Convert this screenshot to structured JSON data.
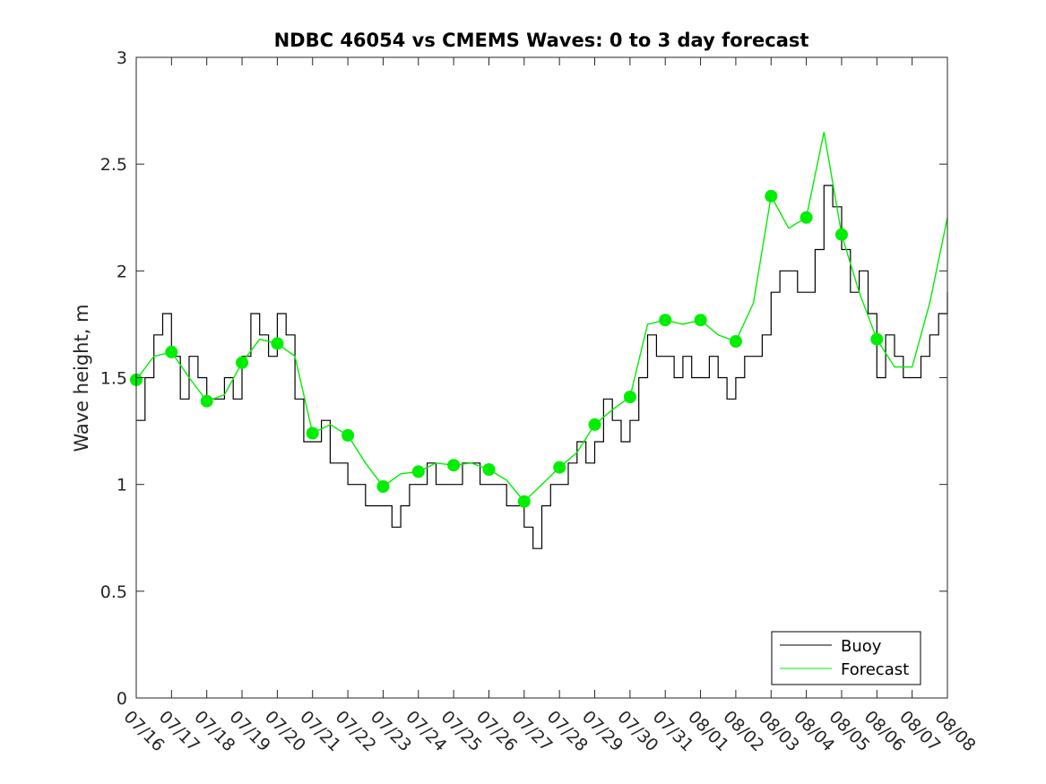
{
  "chart_data": {
    "type": "line",
    "title": "NDBC 46054 vs CMEMS Waves: 0 to 3 day forecast",
    "xlabel": "",
    "ylabel": "Wave height, m",
    "ylim": [
      0,
      3
    ],
    "yticks": [
      "0",
      "0.5",
      "1",
      "1.5",
      "2",
      "2.5",
      "3"
    ],
    "categories": [
      "07/16",
      "07/17",
      "07/18",
      "07/19",
      "07/20",
      "07/21",
      "07/22",
      "07/23",
      "07/24",
      "07/25",
      "07/26",
      "07/27",
      "07/28",
      "07/29",
      "07/30",
      "07/31",
      "08/01",
      "08/02",
      "08/03",
      "08/04",
      "08/05",
      "08/06",
      "08/07",
      "08/08"
    ],
    "grid": false,
    "legend_position": "bottom-right",
    "colors": {
      "buoy": "#000000",
      "forecast": "#00ee00"
    },
    "series": [
      {
        "name": "Buoy",
        "x": [
          "07/16",
          "07/16 06h",
          "07/16 12h",
          "07/16 18h",
          "07/17",
          "07/17 06h",
          "07/17 12h",
          "07/17 18h",
          "07/18",
          "07/18 06h",
          "07/18 12h",
          "07/18 18h",
          "07/19",
          "07/19 06h",
          "07/19 12h",
          "07/19 18h",
          "07/20",
          "07/20 06h",
          "07/20 12h",
          "07/20 18h",
          "07/21",
          "07/21 06h",
          "07/21 12h",
          "07/21 18h",
          "07/22",
          "07/22 06h",
          "07/22 12h",
          "07/22 18h",
          "07/23",
          "07/23 06h",
          "07/23 12h",
          "07/23 18h",
          "07/24",
          "07/24 06h",
          "07/24 12h",
          "07/24 18h",
          "07/25",
          "07/25 06h",
          "07/25 12h",
          "07/25 18h",
          "07/26",
          "07/26 06h",
          "07/26 12h",
          "07/26 18h",
          "07/27",
          "07/27 06h",
          "07/27 12h",
          "07/27 18h",
          "07/28",
          "07/28 06h",
          "07/28 12h",
          "07/28 18h",
          "07/29",
          "07/29 06h",
          "07/29 12h",
          "07/29 18h",
          "07/30",
          "07/30 06h",
          "07/30 12h",
          "07/30 18h",
          "07/31",
          "07/31 06h",
          "07/31 12h",
          "07/31 18h",
          "08/01",
          "08/01 06h",
          "08/01 12h",
          "08/01 18h",
          "08/02",
          "08/02 06h",
          "08/02 12h",
          "08/02 18h",
          "08/03",
          "08/03 06h",
          "08/03 12h",
          "08/03 18h",
          "08/04",
          "08/04 06h",
          "08/04 12h",
          "08/04 18h",
          "08/05",
          "08/05 06h",
          "08/05 12h",
          "08/05 18h",
          "08/06",
          "08/06 06h",
          "08/06 12h",
          "08/06 18h",
          "08/07",
          "08/07 06h",
          "08/07 12h",
          "08/07 18h",
          "08/08"
        ],
        "values": [
          1.3,
          1.5,
          1.7,
          1.8,
          1.6,
          1.4,
          1.6,
          1.5,
          1.4,
          1.4,
          1.5,
          1.4,
          1.6,
          1.8,
          1.7,
          1.6,
          1.8,
          1.7,
          1.4,
          1.2,
          1.2,
          1.3,
          1.1,
          1.1,
          1.0,
          1.0,
          0.9,
          0.9,
          0.9,
          0.8,
          0.9,
          1.0,
          1.0,
          1.1,
          1.0,
          1.0,
          1.0,
          1.1,
          1.1,
          1.0,
          1.0,
          1.0,
          0.9,
          0.9,
          0.8,
          0.7,
          0.9,
          1.0,
          1.0,
          1.1,
          1.2,
          1.1,
          1.2,
          1.4,
          1.3,
          1.2,
          1.3,
          1.5,
          1.7,
          1.6,
          1.6,
          1.5,
          1.6,
          1.5,
          1.5,
          1.6,
          1.5,
          1.4,
          1.5,
          1.6,
          1.6,
          1.7,
          1.9,
          2.0,
          2.0,
          1.9,
          1.9,
          2.1,
          2.4,
          2.3,
          2.1,
          1.9,
          2.0,
          1.8,
          1.5,
          1.7,
          1.6,
          1.5,
          1.5,
          1.6,
          1.7,
          1.8,
          1.9
        ]
      },
      {
        "name": "Forecast",
        "x": [
          "07/16",
          "07/16 12h",
          "07/17",
          "07/17 12h",
          "07/18",
          "07/18 12h",
          "07/19",
          "07/19 12h",
          "07/20",
          "07/20 12h",
          "07/21",
          "07/21 12h",
          "07/22",
          "07/22 12h",
          "07/23",
          "07/23 12h",
          "07/24",
          "07/24 12h",
          "07/25",
          "07/25 12h",
          "07/26",
          "07/26 12h",
          "07/27",
          "07/27 12h",
          "07/28",
          "07/28 12h",
          "07/29",
          "07/29 12h",
          "07/30",
          "07/30 12h",
          "07/31",
          "07/31 12h",
          "08/01",
          "08/01 12h",
          "08/02",
          "08/02 12h",
          "08/03",
          "08/03 12h",
          "08/04",
          "08/04 12h",
          "08/05",
          "08/05 12h",
          "08/06",
          "08/06 12h",
          "08/07",
          "08/07 12h",
          "08/08"
        ],
        "values": [
          1.49,
          1.6,
          1.62,
          1.5,
          1.39,
          1.42,
          1.57,
          1.68,
          1.66,
          1.6,
          1.24,
          1.28,
          1.23,
          1.1,
          0.99,
          1.05,
          1.06,
          1.1,
          1.09,
          1.1,
          1.07,
          1.02,
          0.92,
          1.0,
          1.08,
          1.15,
          1.28,
          1.35,
          1.41,
          1.75,
          1.77,
          1.75,
          1.77,
          1.7,
          1.67,
          1.85,
          2.35,
          2.2,
          2.25,
          2.65,
          2.17,
          1.9,
          1.68,
          1.55,
          1.55,
          1.85,
          2.25
        ]
      }
    ],
    "markers": {
      "series": "Forecast",
      "x": [
        "07/16",
        "07/17",
        "07/18",
        "07/19",
        "07/20",
        "07/21",
        "07/22",
        "07/23",
        "07/24",
        "07/25",
        "07/26",
        "07/27",
        "07/28",
        "07/29",
        "07/30",
        "07/31",
        "08/01",
        "08/02",
        "08/03",
        "08/04",
        "08/05",
        "08/06"
      ],
      "values": [
        1.49,
        1.62,
        1.39,
        1.57,
        1.66,
        1.24,
        1.23,
        0.99,
        1.06,
        1.09,
        1.07,
        0.92,
        1.08,
        1.28,
        1.41,
        1.77,
        1.77,
        1.67,
        2.35,
        2.25,
        2.17,
        1.68
      ]
    }
  }
}
